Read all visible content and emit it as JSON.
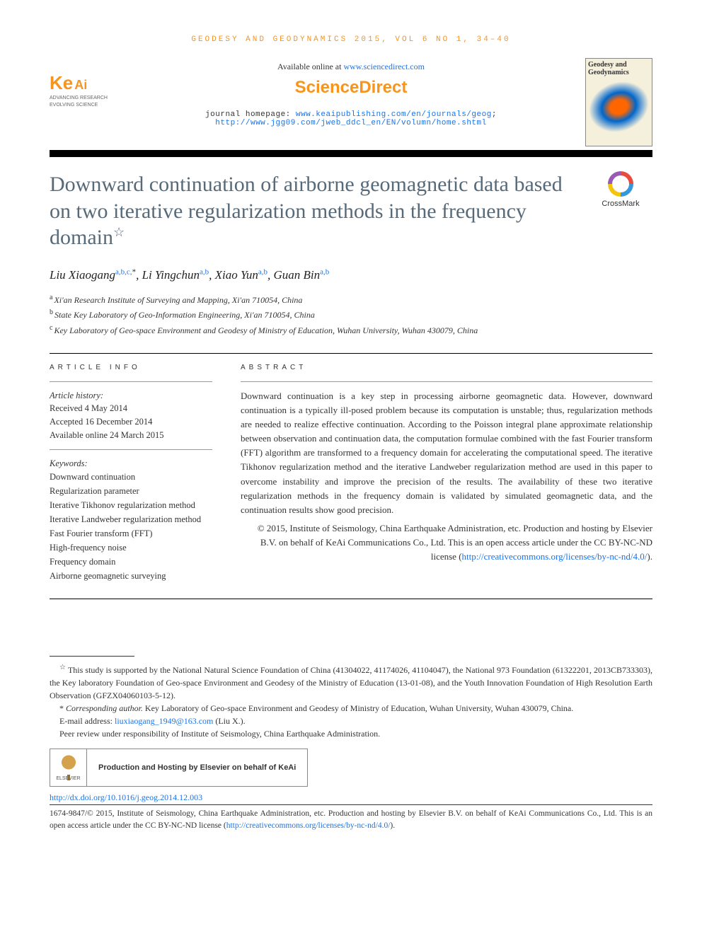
{
  "running_header": "GEODESY AND GEODYNAMICS 2015, VOL 6 NO 1, 34–40",
  "available": {
    "prefix": "Available online at ",
    "url": "www.sciencedirect.com"
  },
  "sciencedirect": "ScienceDirect",
  "keai": {
    "cn": "Ke",
    "en": "Ai",
    "slogan1": "ADVANCING RESEARCH",
    "slogan2": "EVOLVING SCIENCE"
  },
  "cover": {
    "line1": "Geodesy and",
    "line2": "Geodynamics"
  },
  "homepage": {
    "label": "journal homepage: ",
    "url1": "www.keaipublishing.com/en/journals/geog",
    "sep": ";",
    "url2": "http://www.jgg09.com/jweb_ddcl_en/EN/volumn/home.shtml"
  },
  "crossmark": "CrossMark",
  "title": "Downward continuation of airborne geomagnetic data based on two iterative regularization methods in the frequency domain",
  "title_star": "☆",
  "authors": [
    {
      "name": "Liu Xiaogang",
      "affs": "a,b,c,",
      "corr": "*"
    },
    {
      "name": "Li Yingchun",
      "affs": "a,b",
      "corr": ""
    },
    {
      "name": "Xiao Yun",
      "affs": "a,b",
      "corr": ""
    },
    {
      "name": "Guan Bin",
      "affs": "a,b",
      "corr": ""
    }
  ],
  "affiliations": [
    {
      "sup": "a",
      "text": "Xi'an Research Institute of Surveying and Mapping, Xi'an 710054, China"
    },
    {
      "sup": "b",
      "text": "State Key Laboratory of Geo-Information Engineering, Xi'an 710054, China"
    },
    {
      "sup": "c",
      "text": "Key Laboratory of Geo-space Environment and Geodesy of Ministry of Education, Wuhan University, Wuhan 430079, China"
    }
  ],
  "article_info_label": "ARTICLE INFO",
  "abstract_label": "ABSTRACT",
  "history": {
    "heading": "Article history:",
    "received": "Received 4 May 2014",
    "accepted": "Accepted 16 December 2014",
    "online": "Available online 24 March 2015"
  },
  "keywords_heading": "Keywords:",
  "keywords": [
    "Downward continuation",
    "Regularization parameter",
    "Iterative Tikhonov regularization method",
    "Iterative Landweber regularization method",
    "Fast Fourier transform (FFT)",
    "High-frequency noise",
    "Frequency domain",
    "Airborne geomagnetic surveying"
  ],
  "abstract": "Downward continuation is a key step in processing airborne geomagnetic data. However, downward continuation is a typically ill-posed problem because its computation is unstable; thus, regularization methods are needed to realize effective continuation. According to the Poisson integral plane approximate relationship between observation and continuation data, the computation formulae combined with the fast Fourier transform (FFT) algorithm are transformed to a frequency domain for accelerating the computational speed. The iterative Tikhonov regularization method and the iterative Landweber regularization method are used in this paper to overcome instability and improve the precision of the results. The availability of these two iterative regularization methods in the frequency domain is validated by simulated geomagnetic data, and the continuation results show good precision.",
  "copyright_block": {
    "text": "© 2015, Institute of Seismology, China Earthquake Administration, etc. Production and hosting by Elsevier B.V. on behalf of KeAi Communications Co., Ltd. This is an open access article under the CC BY-NC-ND license (",
    "url": "http://creativecommons.org/licenses/by-nc-nd/4.0/",
    "close": ")."
  },
  "footnotes": {
    "funding_marker": "☆",
    "funding": " This study is supported by the National Natural Science Foundation of China (41304022, 41174026, 41104047), the National 973 Foundation (61322201, 2013CB733303), the Key laboratory Foundation of Geo-space Environment and Geodesy of the Ministry of Education (13-01-08), and the Youth Innovation Foundation of High Resolution Earth Observation (GFZX04060103-5-12).",
    "corr_marker": "*",
    "corr_label": " Corresponding author.",
    "corr_text": " Key Laboratory of Geo-space Environment and Geodesy of Ministry of Education, Wuhan University, Wuhan 430079, China.",
    "email_label": "E-mail address: ",
    "email": "liuxiaogang_1949@163.com",
    "email_suffix": " (Liu X.).",
    "peer": "Peer review under responsibility of Institute of Seismology, China Earthquake Administration."
  },
  "production_box": "Production and Hosting by Elsevier on behalf of KeAi",
  "elsevier_label": "ELSEVIER",
  "doi": {
    "url": "http://dx.doi.org/10.1016/j.geog.2014.12.003"
  },
  "bottom_copyright": {
    "issn": "1674-9847/",
    "text": "© 2015, Institute of Seismology, China Earthquake Administration, etc. Production and hosting by Elsevier B.V. on behalf of KeAi Communications Co., Ltd. This is an open access article under the CC BY-NC-ND license (",
    "url": "http://creativecommons.org/licenses/by-nc-nd/4.0/",
    "close": ")."
  }
}
